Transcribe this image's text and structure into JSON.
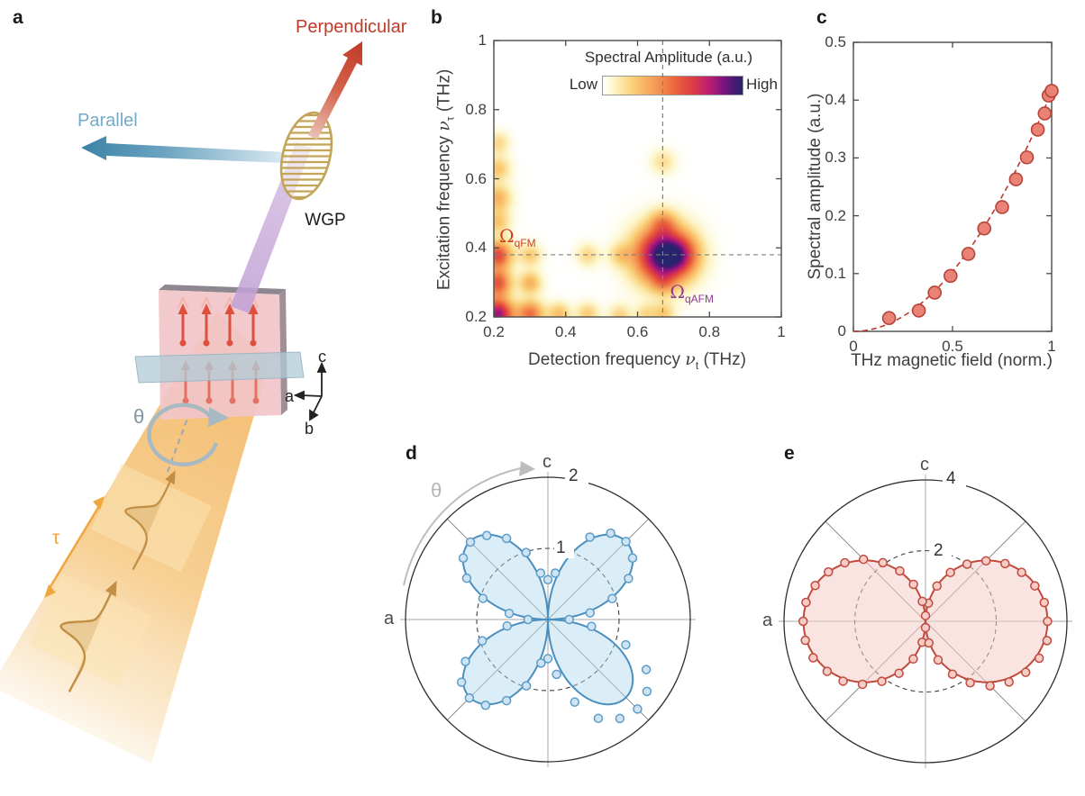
{
  "figure_labels": {
    "a": "a",
    "b": "b",
    "c": "c",
    "d": "d",
    "e": "e"
  },
  "panel_a": {
    "perpendicular_label": "Perpendicular",
    "parallel_label": "Parallel",
    "wgp_label": "WGP",
    "theta_label": "θ",
    "tau_label": "τ",
    "crystal_axes": {
      "a": "a",
      "b": "b",
      "c": "c"
    },
    "colors": {
      "perpendicular": "#bf3a28",
      "parallel": "#4c8fb4",
      "beam_orange": "#f2b45e",
      "beam_purple": "#c3a2d6",
      "sample_pink": "#f1c5c9",
      "spin_red": "#df4f3d",
      "plane_teal": "#b7cfd9",
      "wgp_gold": "#c2a558",
      "theta_gray_blue": "#8aa2b0",
      "tau_orange": "#efa63d"
    }
  },
  "chart_data": [
    {
      "id": "b",
      "type": "heatmap",
      "colorbar": {
        "title": "Spectral Amplitude (a.u.)",
        "low": "Low",
        "high": "High"
      },
      "xlabel": {
        "prefix": "Detection frequency ",
        "symbol": "ν",
        "sub": "t",
        "suffix": " (THz)"
      },
      "ylabel": {
        "prefix": "Excitation frequency ",
        "symbol": "ν",
        "sub": "τ",
        "suffix": " (THz)"
      },
      "xlim": [
        0.2,
        1
      ],
      "ylim": [
        0.2,
        1
      ],
      "xticks": [
        0.2,
        0.4,
        0.6,
        0.8,
        1
      ],
      "xtick_labels": [
        "0.2",
        "0.4",
        "0.6",
        "0.8",
        "1"
      ],
      "yticks": [
        0.2,
        0.4,
        0.6,
        0.8,
        1
      ],
      "ytick_labels": [
        "0.2",
        "0.4",
        "0.6",
        "0.8",
        "1"
      ],
      "crosshair": {
        "x": 0.67,
        "y": 0.38
      },
      "annotations": [
        {
          "symbol": "Ω",
          "sub": "qFM",
          "x": 0.215,
          "y": 0.465,
          "color": "#cc4125"
        },
        {
          "symbol": "Ω",
          "sub": "qAFM",
          "x": 0.69,
          "y": 0.305,
          "color": "#8e3a96"
        }
      ],
      "colormap_stops": [
        [
          0,
          [
            255,
            255,
            255
          ]
        ],
        [
          0.07,
          [
            253,
            247,
            205
          ]
        ],
        [
          0.22,
          [
            250,
            205,
            115
          ]
        ],
        [
          0.38,
          [
            245,
            152,
            85
          ]
        ],
        [
          0.52,
          [
            235,
            100,
            60
          ]
        ],
        [
          0.64,
          [
            222,
            60,
            68
          ]
        ],
        [
          0.75,
          [
            192,
            32,
            110
          ]
        ],
        [
          0.86,
          [
            128,
            20,
            128
          ]
        ],
        [
          0.94,
          [
            70,
            25,
            115
          ]
        ],
        [
          1,
          [
            40,
            36,
            108
          ]
        ]
      ],
      "blobs": [
        [
          0.67,
          0.38,
          1.0,
          0.055
        ],
        [
          0.72,
          0.38,
          0.3,
          0.035
        ],
        [
          0.21,
          0.21,
          0.82,
          0.03
        ],
        [
          0.21,
          0.3,
          0.55,
          0.026
        ],
        [
          0.21,
          0.38,
          0.6,
          0.027
        ],
        [
          0.3,
          0.21,
          0.48,
          0.026
        ],
        [
          0.3,
          0.3,
          0.3,
          0.022
        ],
        [
          0.3,
          0.38,
          0.22,
          0.022
        ],
        [
          0.38,
          0.21,
          0.26,
          0.022
        ],
        [
          0.46,
          0.21,
          0.22,
          0.022
        ],
        [
          0.55,
          0.205,
          0.2,
          0.022
        ],
        [
          0.62,
          0.21,
          0.16,
          0.02
        ],
        [
          0.67,
          0.21,
          0.22,
          0.022
        ],
        [
          0.67,
          0.3,
          0.18,
          0.022
        ],
        [
          0.46,
          0.38,
          0.18,
          0.022
        ],
        [
          0.55,
          0.38,
          0.18,
          0.022
        ],
        [
          0.67,
          0.475,
          0.26,
          0.025
        ],
        [
          0.67,
          0.65,
          0.16,
          0.024
        ],
        [
          0.21,
          0.475,
          0.24,
          0.024
        ],
        [
          0.21,
          0.545,
          0.3,
          0.026
        ],
        [
          0.21,
          0.63,
          0.24,
          0.024
        ],
        [
          0.21,
          0.705,
          0.18,
          0.022
        ]
      ]
    },
    {
      "id": "c",
      "type": "scatter",
      "xlabel": "THz magnetic field (norm.)",
      "ylabel": "Spectral amplitude (a.u.)",
      "xlim": [
        0,
        1
      ],
      "ylim": [
        0,
        0.5
      ],
      "xticks": [
        0,
        0.5,
        1
      ],
      "xtick_labels": [
        "0",
        "0.5",
        "1"
      ],
      "yticks": [
        0,
        0.1,
        0.2,
        0.3,
        0.4,
        0.5
      ],
      "ytick_labels": [
        "0",
        "0.1",
        "0.2",
        "0.3",
        "0.4",
        "0.5"
      ],
      "points": [
        [
          0.18,
          0.023
        ],
        [
          0.33,
          0.036
        ],
        [
          0.41,
          0.067
        ],
        [
          0.49,
          0.096
        ],
        [
          0.58,
          0.134
        ],
        [
          0.66,
          0.178
        ],
        [
          0.75,
          0.215
        ],
        [
          0.82,
          0.263
        ],
        [
          0.875,
          0.301
        ],
        [
          0.93,
          0.349
        ],
        [
          0.965,
          0.377
        ],
        [
          0.985,
          0.408
        ],
        [
          1.0,
          0.416
        ]
      ],
      "fit": {
        "model": "y = a·x²",
        "coeff": 0.415,
        "style": "dashed"
      },
      "colors": {
        "marker_fill": "#ea8375",
        "marker_edge": "#b5443a",
        "fit_line": "#c0392b"
      }
    },
    {
      "id": "d",
      "type": "polar",
      "rmax": 2,
      "rticks": [
        1,
        2
      ],
      "rtick_labels": [
        "1",
        "2"
      ],
      "axis_top": "c",
      "axis_left": "a",
      "theta_label": "θ",
      "curve": {
        "model": "r = A·|sin(2θ)|",
        "amplitude": 1.55
      },
      "points": [
        [
          0,
          0.3
        ],
        [
          9,
          0.6
        ],
        [
          18,
          0.95
        ],
        [
          27,
          1.27
        ],
        [
          36,
          1.47
        ],
        [
          45,
          1.55
        ],
        [
          54,
          1.5
        ],
        [
          63,
          1.3
        ],
        [
          72,
          1.0
        ],
        [
          81,
          0.66
        ],
        [
          90,
          0.56
        ],
        [
          99,
          0.66
        ],
        [
          108,
          0.99
        ],
        [
          117,
          1.28
        ],
        [
          126,
          1.46
        ],
        [
          135,
          1.54
        ],
        [
          144,
          1.47
        ],
        [
          153,
          1.28
        ],
        [
          162,
          0.96
        ],
        [
          171,
          0.55
        ],
        [
          180,
          0.28
        ],
        [
          189,
          0.58
        ],
        [
          198,
          0.97
        ],
        [
          207,
          1.3
        ],
        [
          216,
          1.5
        ],
        [
          225,
          1.56
        ],
        [
          234,
          1.49
        ],
        [
          243,
          1.28
        ],
        [
          252,
          0.98
        ],
        [
          261,
          0.62
        ],
        [
          270,
          0.55
        ],
        [
          279,
          0.78
        ],
        [
          288,
          1.22
        ],
        [
          297,
          1.56
        ],
        [
          306,
          1.72
        ],
        [
          315,
          1.78
        ],
        [
          324,
          1.72
        ],
        [
          333,
          1.55
        ],
        [
          342,
          1.15
        ],
        [
          351,
          0.62
        ]
      ],
      "colors": {
        "curve": "#4a8fc0",
        "fill": "rgba(176,214,236,0.45)",
        "marker_fill": "#cfe3f2",
        "marker_edge": "#5b9dc9",
        "theta": "#b5b5b5"
      }
    },
    {
      "id": "e",
      "type": "polar",
      "rmax": 4,
      "rticks": [
        2,
        4
      ],
      "rtick_labels": [
        "2",
        "4"
      ],
      "axis_top": "c",
      "axis_left": "a",
      "curve": {
        "model": "r = A·|cos(θ)|",
        "amplitude": 3.45
      },
      "points": [
        [
          0,
          3.45
        ],
        [
          9,
          3.4
        ],
        [
          18,
          3.25
        ],
        [
          27,
          3.05
        ],
        [
          36,
          2.78
        ],
        [
          45,
          2.42
        ],
        [
          54,
          2.0
        ],
        [
          63,
          1.55
        ],
        [
          72,
          1.05
        ],
        [
          81,
          0.52
        ],
        [
          90,
          0.16
        ],
        [
          99,
          0.57
        ],
        [
          108,
          1.1
        ],
        [
          117,
          1.6
        ],
        [
          126,
          2.05
        ],
        [
          135,
          2.48
        ],
        [
          144,
          2.82
        ],
        [
          153,
          3.08
        ],
        [
          162,
          3.28
        ],
        [
          171,
          3.42
        ],
        [
          180,
          3.46
        ],
        [
          189,
          3.44
        ],
        [
          198,
          3.34
        ],
        [
          207,
          3.12
        ],
        [
          216,
          2.88
        ],
        [
          225,
          2.52
        ],
        [
          234,
          2.1
        ],
        [
          243,
          1.65
        ],
        [
          252,
          1.12
        ],
        [
          261,
          0.6
        ],
        [
          270,
          0.18
        ],
        [
          279,
          0.62
        ],
        [
          288,
          1.15
        ],
        [
          297,
          1.68
        ],
        [
          306,
          2.15
        ],
        [
          315,
          2.58
        ],
        [
          324,
          2.92
        ],
        [
          333,
          3.18
        ],
        [
          342,
          3.38
        ],
        [
          351,
          3.48
        ]
      ],
      "colors": {
        "curve": "#c14a3d",
        "fill": "rgba(244,205,200,0.55)",
        "marker_fill": "#f5cdc6",
        "marker_edge": "#c14a3d"
      }
    }
  ]
}
